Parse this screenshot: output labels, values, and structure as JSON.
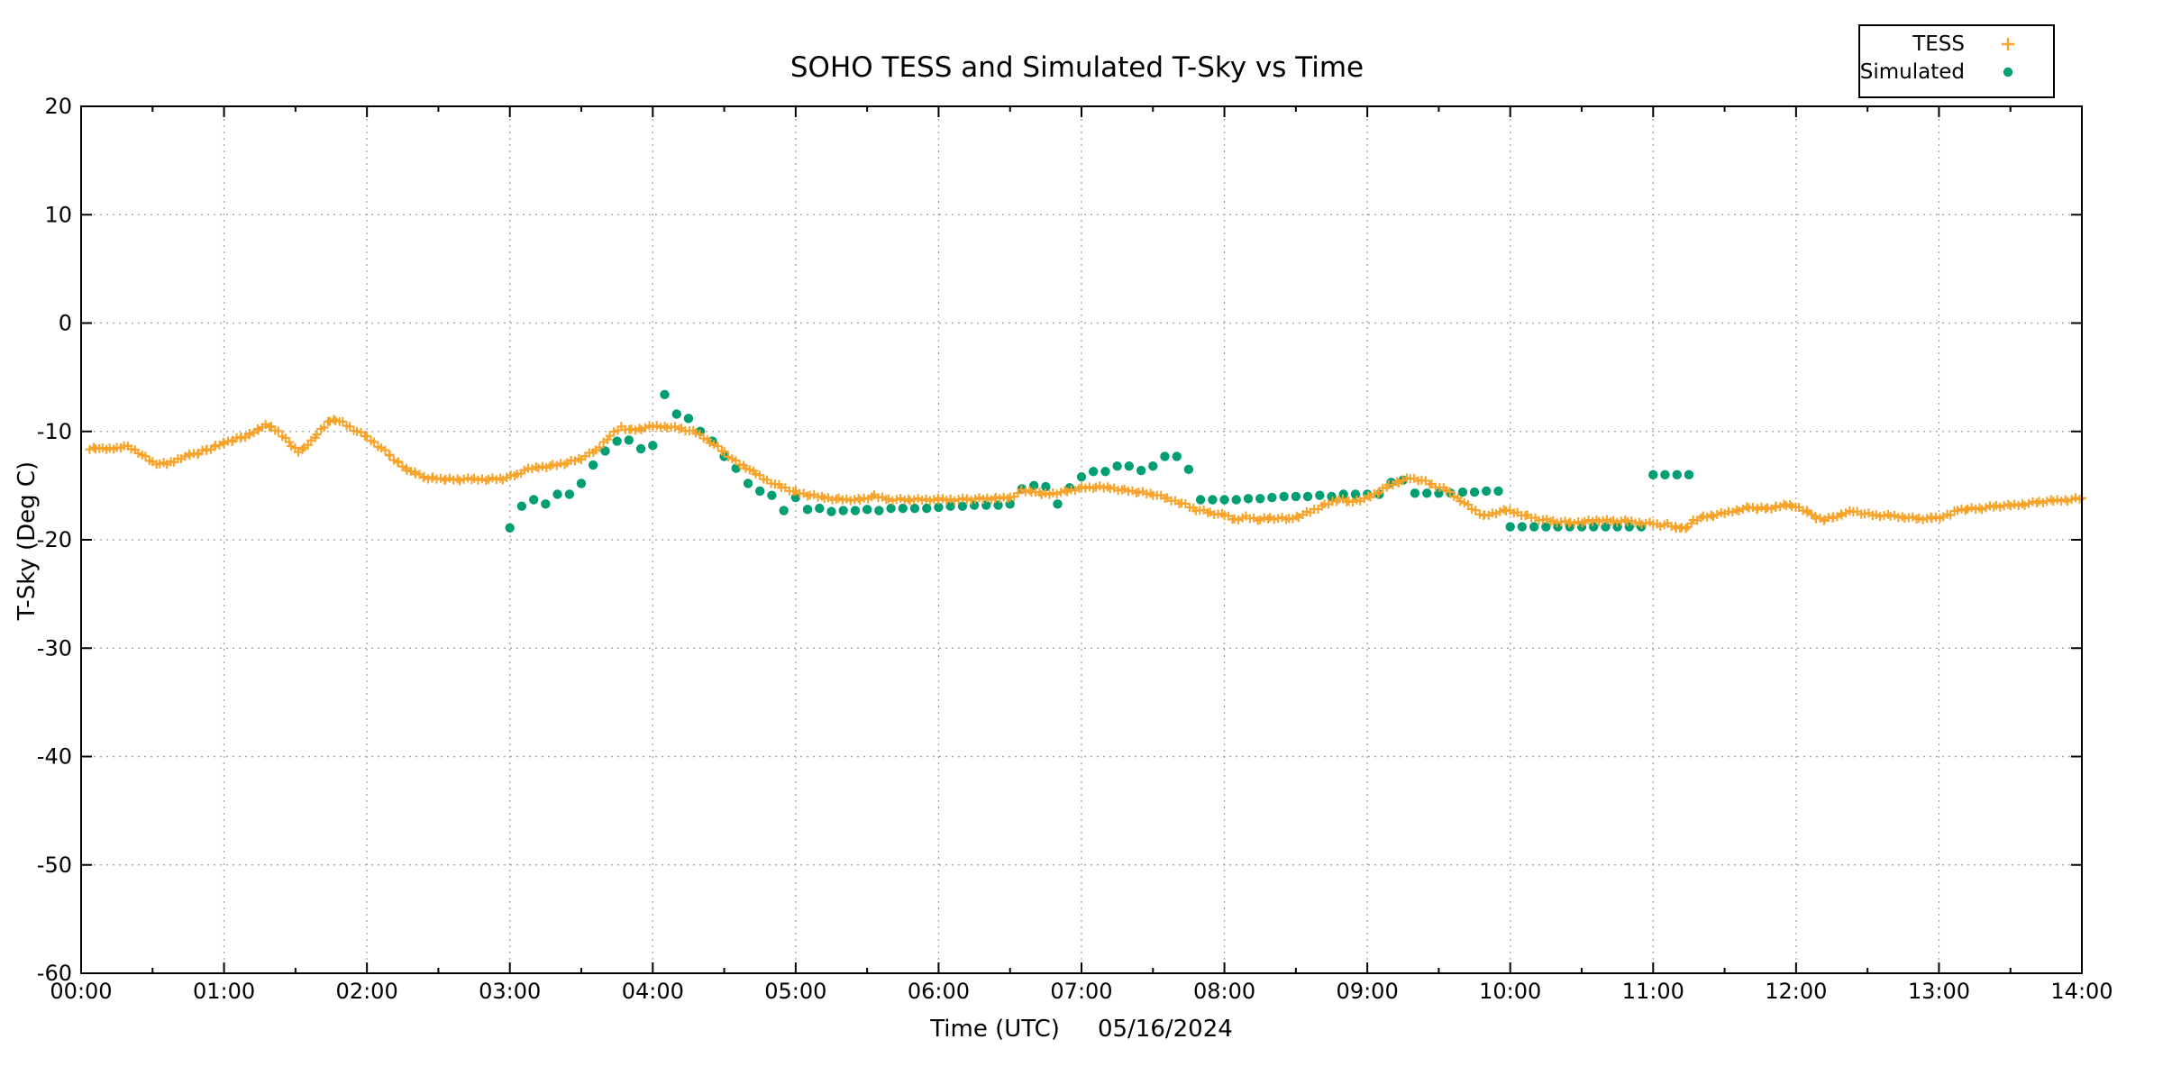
{
  "chart_data": {
    "type": "scatter",
    "title": "SOHO TESS and Simulated T-Sky vs Time",
    "xlabel": "Time (UTC)",
    "date_label": "05/16/2024",
    "ylabel": "T-Sky (Deg C)",
    "xlim_hours": [
      0,
      14
    ],
    "ylim": [
      -60,
      20
    ],
    "x_ticks": [
      "00:00",
      "01:00",
      "02:00",
      "03:00",
      "04:00",
      "05:00",
      "06:00",
      "07:00",
      "08:00",
      "09:00",
      "10:00",
      "11:00",
      "12:00",
      "13:00",
      "14:00"
    ],
    "x_minor_tick_every_hours": 0.5,
    "y_ticks": [
      20,
      10,
      0,
      -10,
      -20,
      -30,
      -40,
      -50,
      -60
    ],
    "grid": true,
    "legend_position": "top-right-outside",
    "colors": {
      "tess_orange": "#F7A329",
      "simulated_green": "#009E73",
      "axis_label_green": "#009E73",
      "grid_gray": "#aaaaaa",
      "border_black": "#000000"
    },
    "series": [
      {
        "name": "TESS",
        "marker": "plus",
        "color": "#F7A329",
        "note": "dense ~1.5-min telemetry rendered from keypoints below (hours UTC, deg C)",
        "points": [
          [
            0.06,
            -11.6
          ],
          [
            0.1,
            -11.5
          ],
          [
            0.15,
            -11.65
          ],
          [
            0.2,
            -11.6
          ],
          [
            0.25,
            -11.5
          ],
          [
            0.3,
            -11.3
          ],
          [
            0.35,
            -11.55
          ],
          [
            0.4,
            -11.9
          ],
          [
            0.45,
            -12.4
          ],
          [
            0.5,
            -12.85
          ],
          [
            0.55,
            -13.0
          ],
          [
            0.6,
            -13.0
          ],
          [
            0.65,
            -12.75
          ],
          [
            0.7,
            -12.4
          ],
          [
            0.76,
            -12.15
          ],
          [
            0.82,
            -12.0
          ],
          [
            0.88,
            -11.7
          ],
          [
            0.94,
            -11.4
          ],
          [
            1.0,
            -11.05
          ],
          [
            1.06,
            -10.8
          ],
          [
            1.12,
            -10.55
          ],
          [
            1.18,
            -10.3
          ],
          [
            1.24,
            -9.8
          ],
          [
            1.29,
            -9.5
          ],
          [
            1.33,
            -9.6
          ],
          [
            1.38,
            -10.0
          ],
          [
            1.43,
            -10.6
          ],
          [
            1.47,
            -11.3
          ],
          [
            1.52,
            -11.8
          ],
          [
            1.56,
            -11.6
          ],
          [
            1.61,
            -10.9
          ],
          [
            1.65,
            -10.3
          ],
          [
            1.7,
            -9.6
          ],
          [
            1.74,
            -9.0
          ],
          [
            1.78,
            -8.9
          ],
          [
            1.83,
            -9.2
          ],
          [
            1.88,
            -9.6
          ],
          [
            1.93,
            -10.0
          ],
          [
            2.0,
            -10.5
          ],
          [
            2.05,
            -11.0
          ],
          [
            2.1,
            -11.5
          ],
          [
            2.16,
            -12.2
          ],
          [
            2.22,
            -12.9
          ],
          [
            2.28,
            -13.5
          ],
          [
            2.34,
            -13.9
          ],
          [
            2.4,
            -14.2
          ],
          [
            2.46,
            -14.3
          ],
          [
            2.55,
            -14.4
          ],
          [
            2.65,
            -14.45
          ],
          [
            2.75,
            -14.4
          ],
          [
            2.85,
            -14.4
          ],
          [
            2.95,
            -14.35
          ],
          [
            3.05,
            -14.0
          ],
          [
            3.1,
            -13.6
          ],
          [
            3.2,
            -13.3
          ],
          [
            3.3,
            -13.15
          ],
          [
            3.4,
            -12.9
          ],
          [
            3.5,
            -12.5
          ],
          [
            3.6,
            -11.8
          ],
          [
            3.7,
            -10.4
          ],
          [
            3.78,
            -9.6
          ],
          [
            3.85,
            -9.9
          ],
          [
            3.92,
            -9.75
          ],
          [
            4.0,
            -9.55
          ],
          [
            4.1,
            -9.55
          ],
          [
            4.2,
            -9.75
          ],
          [
            4.3,
            -10.1
          ],
          [
            4.4,
            -10.9
          ],
          [
            4.5,
            -11.9
          ],
          [
            4.58,
            -12.8
          ],
          [
            4.65,
            -13.3
          ],
          [
            4.72,
            -13.9
          ],
          [
            4.8,
            -14.5
          ],
          [
            4.9,
            -15.1
          ],
          [
            5.0,
            -15.6
          ],
          [
            5.1,
            -15.9
          ],
          [
            5.2,
            -16.1
          ],
          [
            5.3,
            -16.25
          ],
          [
            5.45,
            -16.3
          ],
          [
            5.55,
            -16.0
          ],
          [
            5.65,
            -16.25
          ],
          [
            5.8,
            -16.3
          ],
          [
            6.0,
            -16.3
          ],
          [
            6.2,
            -16.25
          ],
          [
            6.4,
            -16.2
          ],
          [
            6.5,
            -16.1
          ],
          [
            6.58,
            -15.5
          ],
          [
            6.65,
            -15.5
          ],
          [
            6.72,
            -15.8
          ],
          [
            6.8,
            -15.7
          ],
          [
            6.9,
            -15.5
          ],
          [
            7.0,
            -15.2
          ],
          [
            7.1,
            -15.15
          ],
          [
            7.2,
            -15.2
          ],
          [
            7.3,
            -15.4
          ],
          [
            7.4,
            -15.6
          ],
          [
            7.5,
            -15.8
          ],
          [
            7.6,
            -16.2
          ],
          [
            7.7,
            -16.6
          ],
          [
            7.8,
            -17.2
          ],
          [
            7.9,
            -17.5
          ],
          [
            8.0,
            -17.75
          ],
          [
            8.07,
            -18.1
          ],
          [
            8.15,
            -17.9
          ],
          [
            8.25,
            -18.15
          ],
          [
            8.32,
            -18.0
          ],
          [
            8.45,
            -18.1
          ],
          [
            8.52,
            -17.8
          ],
          [
            8.6,
            -17.4
          ],
          [
            8.7,
            -16.8
          ],
          [
            8.8,
            -16.3
          ],
          [
            8.87,
            -16.5
          ],
          [
            8.95,
            -16.3
          ],
          [
            9.02,
            -16.0
          ],
          [
            9.08,
            -15.6
          ],
          [
            9.15,
            -15.0
          ],
          [
            9.22,
            -14.6
          ],
          [
            9.3,
            -14.3
          ],
          [
            9.38,
            -14.5
          ],
          [
            9.45,
            -14.9
          ],
          [
            9.55,
            -15.4
          ],
          [
            9.65,
            -16.3
          ],
          [
            9.73,
            -17.1
          ],
          [
            9.82,
            -17.8
          ],
          [
            9.9,
            -17.5
          ],
          [
            9.97,
            -17.3
          ],
          [
            10.05,
            -17.5
          ],
          [
            10.12,
            -17.8
          ],
          [
            10.2,
            -18.1
          ],
          [
            10.3,
            -18.3
          ],
          [
            10.42,
            -18.45
          ],
          [
            10.52,
            -18.3
          ],
          [
            10.62,
            -18.2
          ],
          [
            10.72,
            -18.3
          ],
          [
            10.82,
            -18.3
          ],
          [
            10.92,
            -18.45
          ],
          [
            11.0,
            -18.5
          ],
          [
            11.05,
            -18.65
          ],
          [
            11.1,
            -18.6
          ],
          [
            11.16,
            -18.85
          ],
          [
            11.2,
            -19.0
          ],
          [
            11.24,
            -18.9
          ],
          [
            11.28,
            -18.2
          ],
          [
            11.35,
            -17.9
          ],
          [
            11.42,
            -17.75
          ],
          [
            11.5,
            -17.55
          ],
          [
            11.6,
            -17.2
          ],
          [
            11.67,
            -17.0
          ],
          [
            11.73,
            -17.1
          ],
          [
            11.8,
            -17.1
          ],
          [
            11.86,
            -17.0
          ],
          [
            11.93,
            -16.75
          ],
          [
            11.97,
            -16.8
          ],
          [
            12.02,
            -17.1
          ],
          [
            12.08,
            -17.35
          ],
          [
            12.14,
            -18.0
          ],
          [
            12.2,
            -18.15
          ],
          [
            12.26,
            -17.95
          ],
          [
            12.32,
            -17.6
          ],
          [
            12.4,
            -17.35
          ],
          [
            12.48,
            -17.6
          ],
          [
            12.56,
            -17.75
          ],
          [
            12.66,
            -17.8
          ],
          [
            12.76,
            -17.9
          ],
          [
            12.86,
            -18.05
          ],
          [
            12.95,
            -18.0
          ],
          [
            13.03,
            -17.9
          ],
          [
            13.08,
            -17.7
          ],
          [
            13.13,
            -17.2
          ],
          [
            13.2,
            -17.15
          ],
          [
            13.3,
            -17.1
          ],
          [
            13.4,
            -16.9
          ],
          [
            13.5,
            -16.85
          ],
          [
            13.6,
            -16.7
          ],
          [
            13.7,
            -16.5
          ],
          [
            13.8,
            -16.4
          ],
          [
            13.9,
            -16.3
          ],
          [
            14.0,
            -16.15
          ]
        ]
      },
      {
        "name": "Simulated",
        "marker": "dot",
        "color": "#009E73",
        "note": "5-minute simulated points (hours UTC, deg C)",
        "points": [
          [
            3.0,
            -18.9
          ],
          [
            3.083,
            -16.9
          ],
          [
            3.167,
            -16.3
          ],
          [
            3.25,
            -16.7
          ],
          [
            3.333,
            -15.8
          ],
          [
            3.417,
            -15.8
          ],
          [
            3.5,
            -14.8
          ],
          [
            3.583,
            -13.1
          ],
          [
            3.667,
            -11.8
          ],
          [
            3.75,
            -10.9
          ],
          [
            3.833,
            -10.8
          ],
          [
            3.917,
            -11.6
          ],
          [
            4.0,
            -11.3
          ],
          [
            4.083,
            -6.6
          ],
          [
            4.167,
            -8.4
          ],
          [
            4.25,
            -8.8
          ],
          [
            4.333,
            -10.0
          ],
          [
            4.417,
            -10.9
          ],
          [
            4.5,
            -12.3
          ],
          [
            4.583,
            -13.4
          ],
          [
            4.667,
            -14.8
          ],
          [
            4.75,
            -15.5
          ],
          [
            4.833,
            -15.9
          ],
          [
            4.917,
            -17.3
          ],
          [
            5.0,
            -16.1
          ],
          [
            5.083,
            -17.2
          ],
          [
            5.167,
            -17.1
          ],
          [
            5.25,
            -17.4
          ],
          [
            5.333,
            -17.3
          ],
          [
            5.417,
            -17.3
          ],
          [
            5.5,
            -17.2
          ],
          [
            5.583,
            -17.3
          ],
          [
            5.667,
            -17.1
          ],
          [
            5.75,
            -17.1
          ],
          [
            5.833,
            -17.1
          ],
          [
            5.917,
            -17.1
          ],
          [
            6.0,
            -17.0
          ],
          [
            6.083,
            -16.9
          ],
          [
            6.167,
            -16.9
          ],
          [
            6.25,
            -16.8
          ],
          [
            6.333,
            -16.8
          ],
          [
            6.417,
            -16.8
          ],
          [
            6.5,
            -16.7
          ],
          [
            6.583,
            -15.3
          ],
          [
            6.667,
            -15.0
          ],
          [
            6.75,
            -15.1
          ],
          [
            6.833,
            -16.7
          ],
          [
            6.917,
            -15.2
          ],
          [
            7.0,
            -14.2
          ],
          [
            7.083,
            -13.7
          ],
          [
            7.167,
            -13.7
          ],
          [
            7.25,
            -13.2
          ],
          [
            7.333,
            -13.2
          ],
          [
            7.417,
            -13.6
          ],
          [
            7.5,
            -13.2
          ],
          [
            7.583,
            -12.3
          ],
          [
            7.667,
            -12.3
          ],
          [
            7.75,
            -13.5
          ],
          [
            7.833,
            -16.3
          ],
          [
            7.917,
            -16.3
          ],
          [
            8.0,
            -16.3
          ],
          [
            8.083,
            -16.3
          ],
          [
            8.167,
            -16.2
          ],
          [
            8.25,
            -16.2
          ],
          [
            8.333,
            -16.1
          ],
          [
            8.417,
            -16.0
          ],
          [
            8.5,
            -16.0
          ],
          [
            8.583,
            -16.0
          ],
          [
            8.667,
            -15.9
          ],
          [
            8.75,
            -16.0
          ],
          [
            8.833,
            -15.8
          ],
          [
            8.917,
            -15.8
          ],
          [
            9.0,
            -15.8
          ],
          [
            9.083,
            -15.8
          ],
          [
            9.167,
            -14.7
          ],
          [
            9.25,
            -14.5
          ],
          [
            9.333,
            -15.7
          ],
          [
            9.417,
            -15.7
          ],
          [
            9.5,
            -15.7
          ],
          [
            9.583,
            -15.7
          ],
          [
            9.667,
            -15.6
          ],
          [
            9.75,
            -15.6
          ],
          [
            9.833,
            -15.5
          ],
          [
            9.917,
            -15.5
          ],
          [
            10.0,
            -18.8
          ],
          [
            10.083,
            -18.8
          ],
          [
            10.167,
            -18.8
          ],
          [
            10.25,
            -18.8
          ],
          [
            10.333,
            -18.8
          ],
          [
            10.417,
            -18.8
          ],
          [
            10.5,
            -18.8
          ],
          [
            10.583,
            -18.8
          ],
          [
            10.667,
            -18.8
          ],
          [
            10.75,
            -18.8
          ],
          [
            10.833,
            -18.8
          ],
          [
            10.917,
            -18.8
          ],
          [
            11.0,
            -14.0
          ],
          [
            11.083,
            -14.0
          ],
          [
            11.167,
            -14.0
          ],
          [
            11.25,
            -14.0
          ]
        ]
      }
    ]
  }
}
